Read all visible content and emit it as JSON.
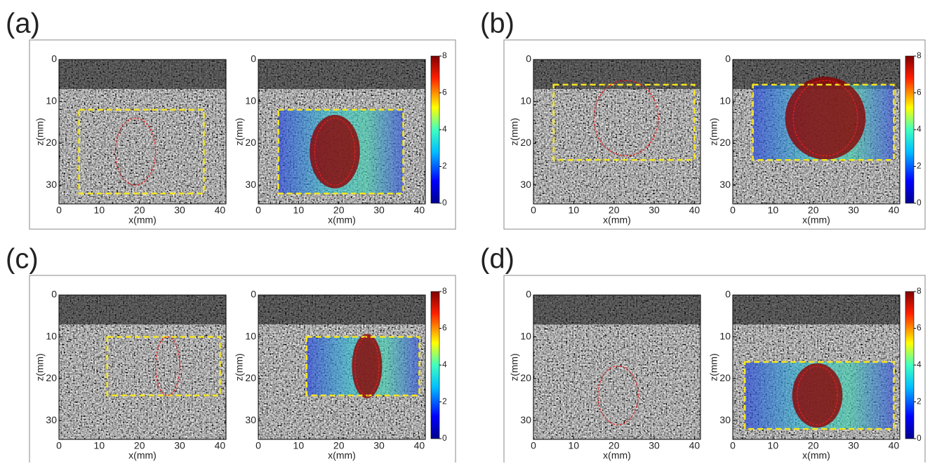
{
  "panel_labels": [
    "(a)",
    "(b)",
    "(c)",
    "(d)"
  ],
  "chart_data": [
    {
      "type": "image",
      "xlabel": "x(mm)",
      "ylabel": "z(mm)",
      "xlim": [
        0,
        41.5
      ],
      "ylim": [
        0,
        34.5
      ],
      "xticks": [
        0,
        10,
        20,
        30,
        40
      ],
      "yticks": [
        0,
        10,
        20,
        30
      ],
      "roi": {
        "x": [
          5,
          36
        ],
        "z": [
          12,
          32
        ]
      },
      "lesion": {
        "x": 19,
        "z": 22,
        "rx": 5,
        "rz": 8
      }
    },
    {
      "type": "image",
      "xlabel": "x(mm)",
      "ylabel": "z(mm)",
      "xlim": [
        0,
        41.5
      ],
      "ylim": [
        0,
        34.5
      ],
      "xticks": [
        0,
        10,
        20,
        30,
        40
      ],
      "yticks": [
        0,
        10,
        20,
        30
      ],
      "roi": {
        "x": [
          5,
          36
        ],
        "z": [
          12,
          32
        ]
      },
      "lesion": {
        "x": 19,
        "z": 22,
        "rx": 5,
        "rz": 8
      },
      "colorbar": {
        "lim": [
          0,
          8
        ],
        "ticks": [
          0,
          2,
          4,
          6,
          8
        ]
      }
    },
    {
      "type": "image",
      "xlabel": "x(mm)",
      "ylabel": "z(mm)",
      "xlim": [
        0,
        41.5
      ],
      "ylim": [
        0,
        34.5
      ],
      "xticks": [
        0,
        10,
        20,
        30,
        40
      ],
      "yticks": [
        0,
        10,
        20,
        30
      ],
      "roi": {
        "x": [
          5,
          40
        ],
        "z": [
          6,
          24
        ]
      },
      "lesion": {
        "x": 23,
        "z": 14,
        "rx": 8,
        "rz": 9
      }
    },
    {
      "type": "image",
      "xlabel": "x(mm)",
      "ylabel": "z(mm)",
      "xlim": [
        0,
        41.5
      ],
      "ylim": [
        0,
        34.5
      ],
      "xticks": [
        0,
        10,
        20,
        30,
        40
      ],
      "yticks": [
        0,
        10,
        20,
        30
      ],
      "roi": {
        "x": [
          5,
          40
        ],
        "z": [
          6,
          24
        ]
      },
      "lesion": {
        "x": 23,
        "z": 14,
        "rx": 8,
        "rz": 9
      },
      "colorbar": {
        "lim": [
          0,
          8
        ],
        "ticks": [
          0,
          2,
          4,
          6,
          8
        ]
      }
    },
    {
      "type": "image",
      "xlabel": "x(mm)",
      "ylabel": "z(mm)",
      "xlim": [
        0,
        41.5
      ],
      "ylim": [
        0,
        34.5
      ],
      "xticks": [
        0,
        10,
        20,
        30,
        40
      ],
      "yticks": [
        0,
        10,
        20,
        30
      ],
      "roi": {
        "x": [
          12,
          40
        ],
        "z": [
          10,
          24
        ]
      },
      "lesion": {
        "x": 27,
        "z": 17,
        "rx": 3,
        "rz": 7
      }
    },
    {
      "type": "image",
      "xlabel": "x(mm)",
      "ylabel": "z(mm)",
      "xlim": [
        0,
        41.5
      ],
      "ylim": [
        0,
        34.5
      ],
      "xticks": [
        0,
        10,
        20,
        30,
        40
      ],
      "yticks": [
        0,
        10,
        20,
        30
      ],
      "roi": {
        "x": [
          12,
          40
        ],
        "z": [
          10,
          24
        ]
      },
      "lesion": {
        "x": 27,
        "z": 17,
        "rx": 3,
        "rz": 7
      },
      "colorbar": {
        "lim": [
          0,
          8
        ],
        "ticks": [
          0,
          2,
          4,
          6,
          8
        ]
      }
    },
    {
      "type": "image",
      "xlabel": "x(mm)",
      "ylabel": "z(mm)",
      "xlim": [
        0,
        41.5
      ],
      "ylim": [
        0,
        34.5
      ],
      "xticks": [
        0,
        10,
        20,
        30,
        40
      ],
      "yticks": [
        0,
        10,
        20,
        30
      ],
      "lesion": {
        "x": 21,
        "z": 24,
        "rx": 5,
        "rz": 7
      }
    },
    {
      "type": "image",
      "xlabel": "x(mm)",
      "ylabel": "z(mm)",
      "xlim": [
        0,
        41.5
      ],
      "ylim": [
        0,
        34.5
      ],
      "xticks": [
        0,
        10,
        20,
        30,
        40
      ],
      "yticks": [
        0,
        10,
        20,
        30
      ],
      "roi": {
        "x": [
          3,
          40
        ],
        "z": [
          16,
          32
        ]
      },
      "lesion": {
        "x": 21,
        "z": 24,
        "rx": 5,
        "rz": 7
      },
      "colorbar": {
        "lim": [
          0,
          8
        ],
        "ticks": [
          0,
          2,
          4,
          6,
          8
        ]
      }
    }
  ]
}
